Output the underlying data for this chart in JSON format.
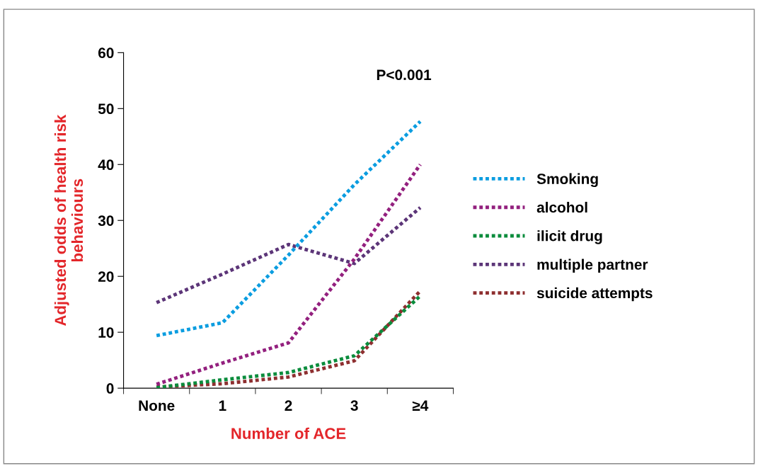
{
  "chart_data": {
    "type": "line",
    "xlabel": "Number of ACE",
    "ylabel": "Adjusted odds of health risk\nbehaviours",
    "categories": [
      "None",
      "1",
      "2",
      "3",
      "≥4"
    ],
    "series": [
      {
        "name": "Smoking",
        "color": "#0b9de0",
        "values": [
          9.4,
          11.7,
          23.8,
          36.4,
          47.7
        ]
      },
      {
        "name": "alcohol",
        "color": "#93207e",
        "values": [
          0.7,
          4.5,
          8.1,
          23.1,
          40
        ]
      },
      {
        "name": "ilicit drug",
        "color": "#0a8c3c",
        "values": [
          0.1,
          1.5,
          2.8,
          5.8,
          16.5
        ]
      },
      {
        "name": "multiple partner",
        "color": "#5c3578",
        "values": [
          15.3,
          20.4,
          25.7,
          22.3,
          32.3
        ]
      },
      {
        "name": "suicide attempts",
        "color": "#8e2f30",
        "values": [
          0.2,
          0.8,
          2.0,
          4.9,
          17.4
        ]
      }
    ],
    "ylim": [
      0,
      60
    ],
    "yticks": [
      0,
      10,
      20,
      30,
      40,
      50,
      60
    ],
    "annotations": [
      "P<0.001"
    ],
    "legend": "right",
    "grid": false,
    "line_style": "dotted",
    "marker": "none"
  }
}
